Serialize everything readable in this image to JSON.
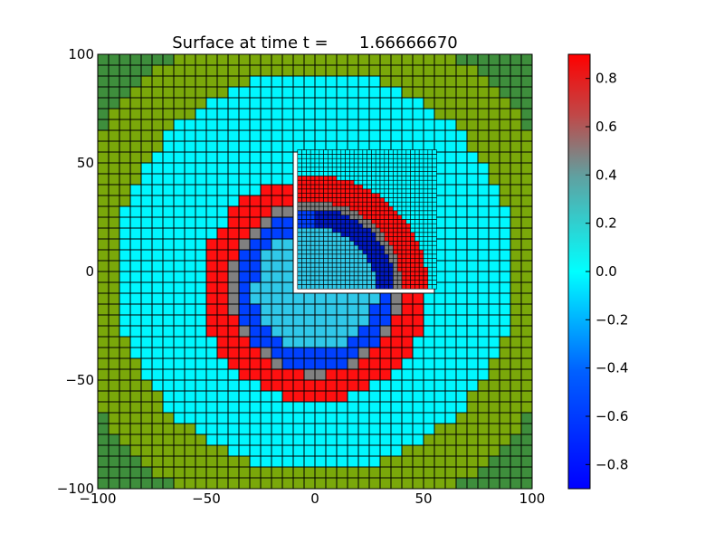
{
  "chart_data": {
    "type": "heatmap",
    "title": "Surface at time t =      1.66666670",
    "xlabel": "",
    "ylabel": "",
    "xlim": [
      -100,
      100
    ],
    "ylim": [
      -100,
      100
    ],
    "x_ticks": [
      "−100",
      "−50",
      "0",
      "50",
      "100"
    ],
    "y_ticks": [
      "−100",
      "−50",
      "0",
      "50",
      "100"
    ],
    "x_tick_values": [
      -100,
      -50,
      0,
      50,
      100
    ],
    "y_tick_values": [
      -100,
      -50,
      0,
      50,
      100
    ],
    "coarse_cell_size": 5,
    "fine_cell_size": 2,
    "refined_patch": {
      "x": [
        -8,
        56
      ],
      "y": [
        -8,
        56
      ]
    },
    "colorbar": {
      "range": [
        -0.9,
        0.9
      ],
      "ticks": [
        "−0.8",
        "−0.6",
        "−0.4",
        "−0.2",
        "0.0",
        "0.2",
        "0.4",
        "0.6",
        "0.8"
      ],
      "tick_values": [
        -0.8,
        -0.6,
        -0.4,
        -0.2,
        0.0,
        0.2,
        0.4,
        0.6,
        0.8
      ]
    },
    "field": {
      "center": [
        0,
        -8
      ],
      "description_levels": {
        "outer_green": "#3e8e3c",
        "land_olive": "#7aa80a",
        "water_cyan": "#00f7ff"
      },
      "ring_red_radius": [
        40,
        52
      ],
      "ring_grey_radius": [
        37,
        40
      ],
      "inner_blue_radius": [
        28,
        37
      ],
      "water_radius": 92,
      "corner_radius": 118
    },
    "colors": {
      "grid_line": "#000000",
      "red": "#ff1010",
      "grey": "#808080",
      "dark_blue": "#0018c0",
      "blue": "#0040ff",
      "inner_light": "#30c8e8"
    }
  }
}
